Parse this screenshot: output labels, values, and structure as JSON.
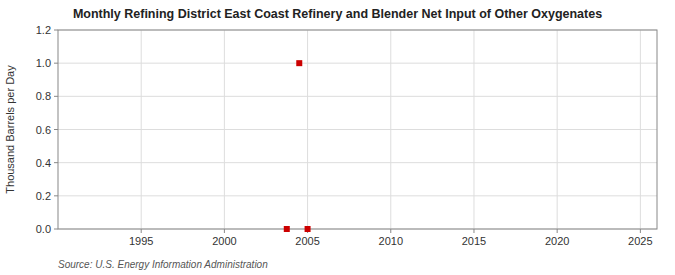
{
  "chart_data": {
    "type": "scatter",
    "title": "Monthly Refining District East Coast Refinery and Blender Net Input of Other Oxygenates",
    "ylabel": "Thousand Barrels per Day",
    "source": "Source: U.S. Energy Information Administration",
    "x": [
      2003.75,
      2004.5,
      2005.0
    ],
    "values": [
      0.0,
      1.0,
      0.0
    ],
    "color": "#cc0000",
    "marker": "square",
    "xlim": [
      1990,
      2026
    ],
    "ylim": [
      0.0,
      1.2
    ],
    "xticks": [
      1995,
      2000,
      2005,
      2010,
      2015,
      2020,
      2025
    ],
    "yticks": [
      {
        "value": 0.0,
        "label": "0.0"
      },
      0.2,
      0.4,
      0.6,
      0.8,
      {
        "value": 1.0,
        "label": "1.0"
      },
      1.2
    ],
    "grid": true
  }
}
